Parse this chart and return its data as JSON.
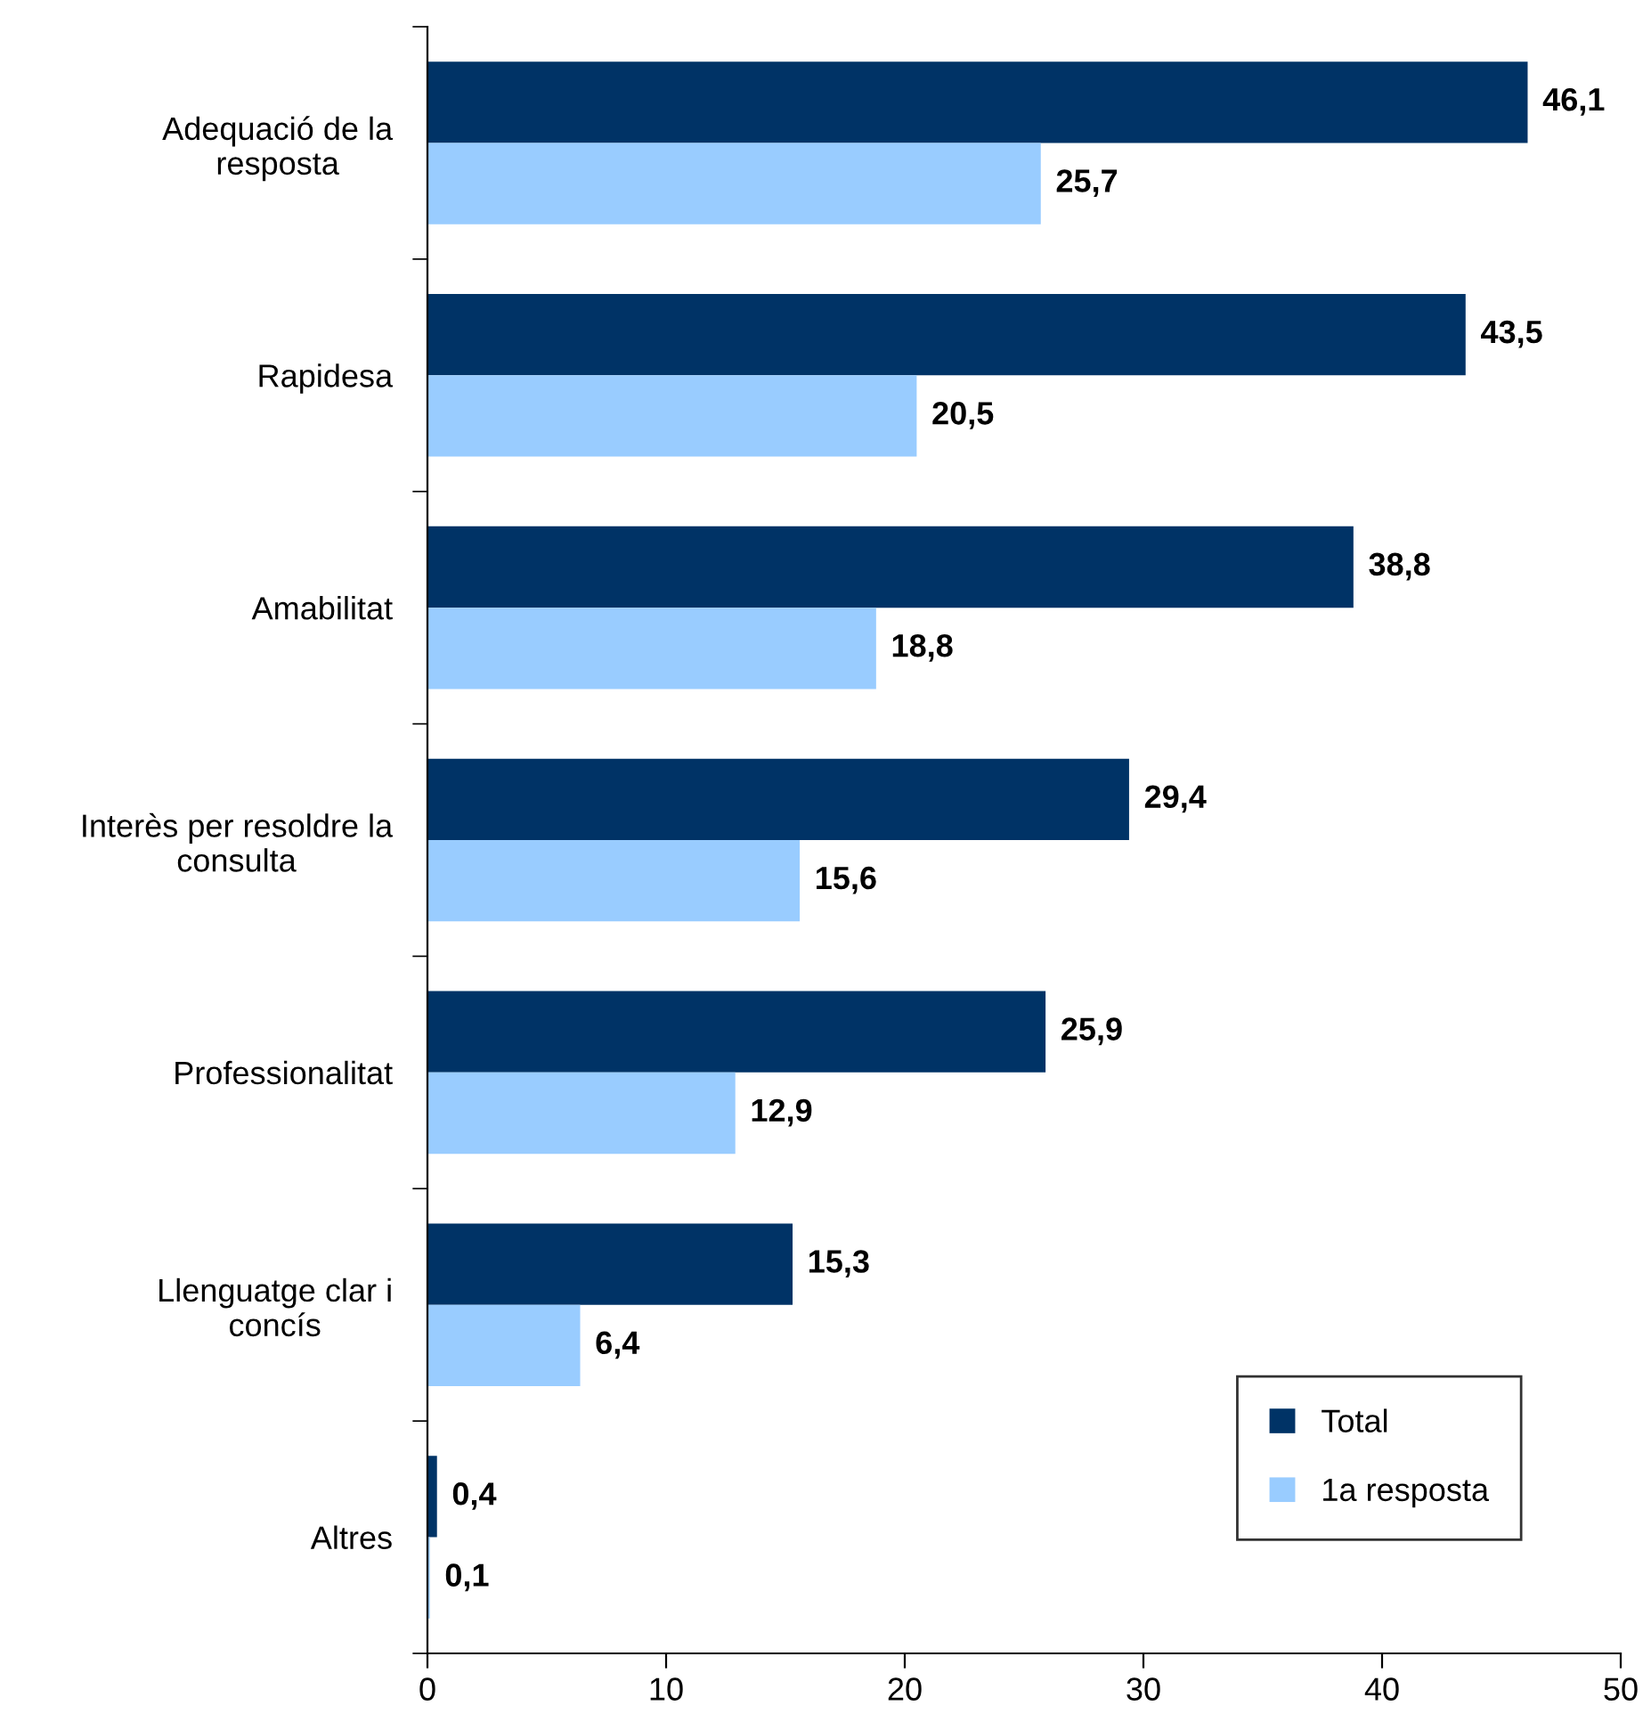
{
  "chart_data": {
    "type": "bar",
    "orientation": "horizontal",
    "categories": [
      "Adequació de la\nresposta",
      "Rapidesa",
      "Amabilitat",
      "Interès per resoldre la\nconsulta",
      "Professionalitat",
      "Llenguatge clar i\nconcís",
      "Altres"
    ],
    "series": [
      {
        "name": "Total",
        "color": "#003366",
        "values": [
          46.1,
          43.5,
          38.8,
          29.4,
          25.9,
          15.3,
          0.4
        ],
        "value_labels": [
          "46,1",
          "43,5",
          "38,8",
          "29,4",
          "25,9",
          "15,3",
          "0,4"
        ]
      },
      {
        "name": "1a resposta",
        "color": "#99ccff",
        "values": [
          25.7,
          20.5,
          18.8,
          15.6,
          12.9,
          6.4,
          0.1
        ],
        "value_labels": [
          "25,7",
          "20,5",
          "18,8",
          "15,6",
          "12,9",
          "6,4",
          "0,1"
        ]
      }
    ],
    "xlim": [
      0,
      50
    ],
    "xticks": [
      0,
      10,
      20,
      30,
      40,
      50
    ],
    "grid": false,
    "legend": "bottom right"
  }
}
